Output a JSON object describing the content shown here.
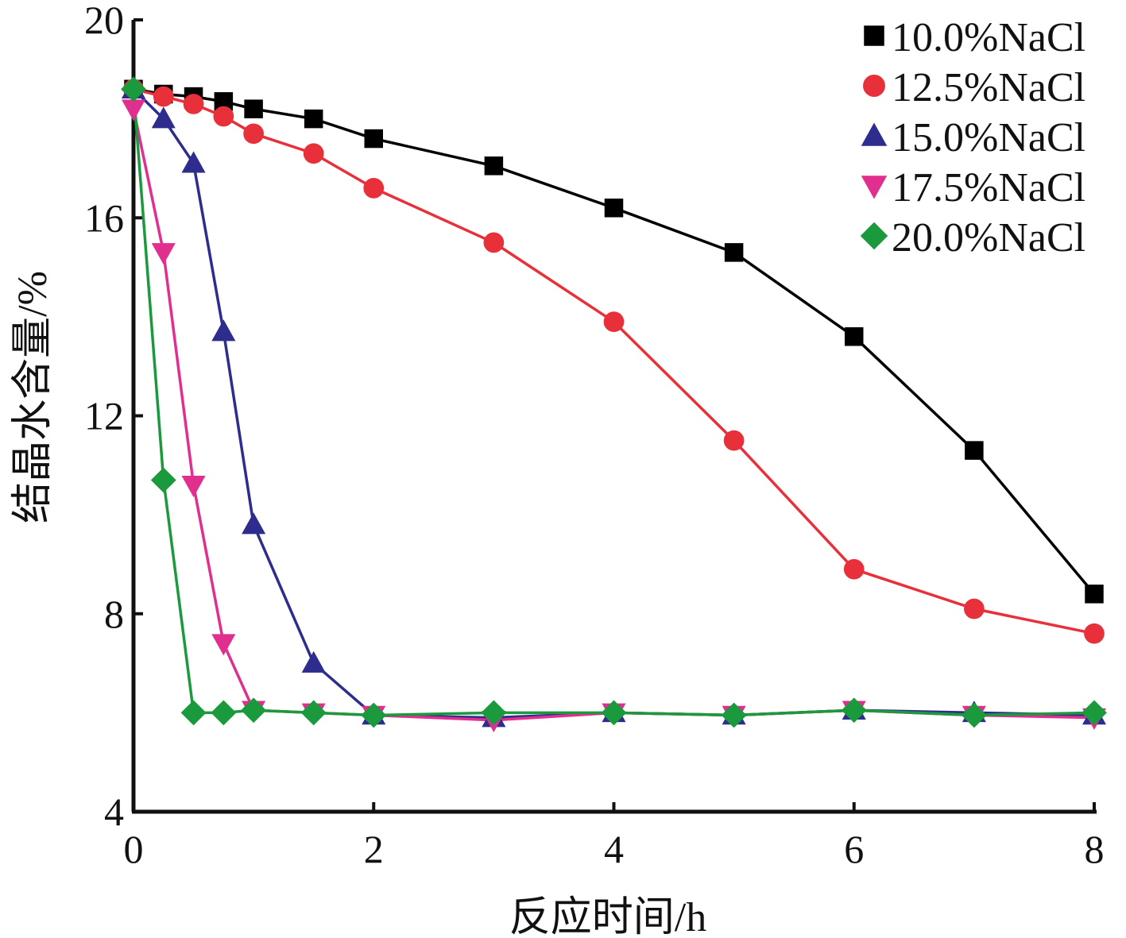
{
  "chart_data": {
    "type": "line",
    "xlabel": "反应时间/h",
    "ylabel": "结晶水含量/%",
    "xlim": [
      0,
      8
    ],
    "ylim": [
      4,
      20
    ],
    "xticks": [
      "0",
      "2",
      "4",
      "6",
      "8"
    ],
    "yticks": [
      "4",
      "8",
      "12",
      "16",
      "20"
    ],
    "grid": false,
    "legend_position": "top-right",
    "series": [
      {
        "name": "10.0%NaCl",
        "color": "#000000",
        "marker": "square",
        "x": [
          0,
          0.25,
          0.5,
          0.75,
          1,
          1.5,
          2,
          3,
          4,
          5,
          6,
          7,
          8
        ],
        "y": [
          18.6,
          18.5,
          18.45,
          18.35,
          18.2,
          18.0,
          17.6,
          17.05,
          16.2,
          15.3,
          13.6,
          11.3,
          8.4
        ]
      },
      {
        "name": "12.5%NaCl",
        "color": "#e8303b",
        "marker": "circle",
        "x": [
          0,
          0.25,
          0.5,
          0.75,
          1,
          1.5,
          2,
          3,
          4,
          5,
          6,
          7,
          8
        ],
        "y": [
          18.6,
          18.45,
          18.3,
          18.05,
          17.7,
          17.3,
          16.6,
          15.5,
          13.9,
          11.5,
          8.9,
          8.1,
          7.6
        ]
      },
      {
        "name": "15.0%NaCl",
        "color": "#2e2c8c",
        "marker": "triangle-up",
        "x": [
          0,
          0.25,
          0.5,
          0.75,
          1,
          1.5,
          2,
          3,
          4,
          5,
          6,
          7,
          8
        ],
        "y": [
          18.6,
          18.0,
          17.1,
          13.7,
          9.8,
          7.0,
          5.95,
          5.9,
          6.0,
          5.95,
          6.05,
          6.0,
          5.95
        ]
      },
      {
        "name": "17.5%NaCl",
        "color": "#e02f8e",
        "marker": "triangle-down",
        "x": [
          0,
          0.25,
          0.5,
          0.75,
          1,
          1.5,
          2,
          3,
          4,
          5,
          6,
          7,
          8
        ],
        "y": [
          18.2,
          15.3,
          10.6,
          7.4,
          6.05,
          6.0,
          5.95,
          5.85,
          6.0,
          5.95,
          6.05,
          5.95,
          5.9
        ]
      },
      {
        "name": "20.0%NaCl",
        "color": "#1a9a3c",
        "marker": "diamond",
        "x": [
          0,
          0.25,
          0.5,
          0.75,
          1,
          1.5,
          2,
          3,
          4,
          5,
          6,
          7,
          8
        ],
        "y": [
          18.6,
          10.7,
          6.0,
          6.0,
          6.05,
          6.0,
          5.95,
          6.0,
          6.0,
          5.95,
          6.05,
          5.95,
          6.0
        ]
      }
    ]
  }
}
